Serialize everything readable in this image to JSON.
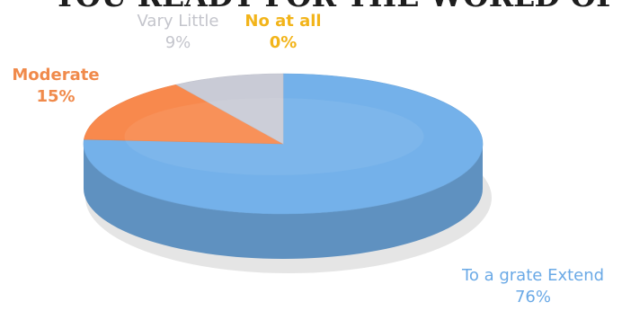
{
  "chart_data": {
    "type": "pie",
    "title": "YOU READY FOR THE WORLD OF WORK?",
    "categories": [
      "To a grate Extend",
      "Moderate",
      "Vary Little",
      "No at all"
    ],
    "values": [
      76,
      15,
      9,
      0
    ],
    "value_labels": [
      "76%",
      "15%",
      "9%",
      "0%"
    ],
    "colors": [
      "#74b1ea",
      "#f8894d",
      "#c9cbd6",
      "#f7bd2a"
    ],
    "three_d": true,
    "legend": "none",
    "grid": false
  }
}
